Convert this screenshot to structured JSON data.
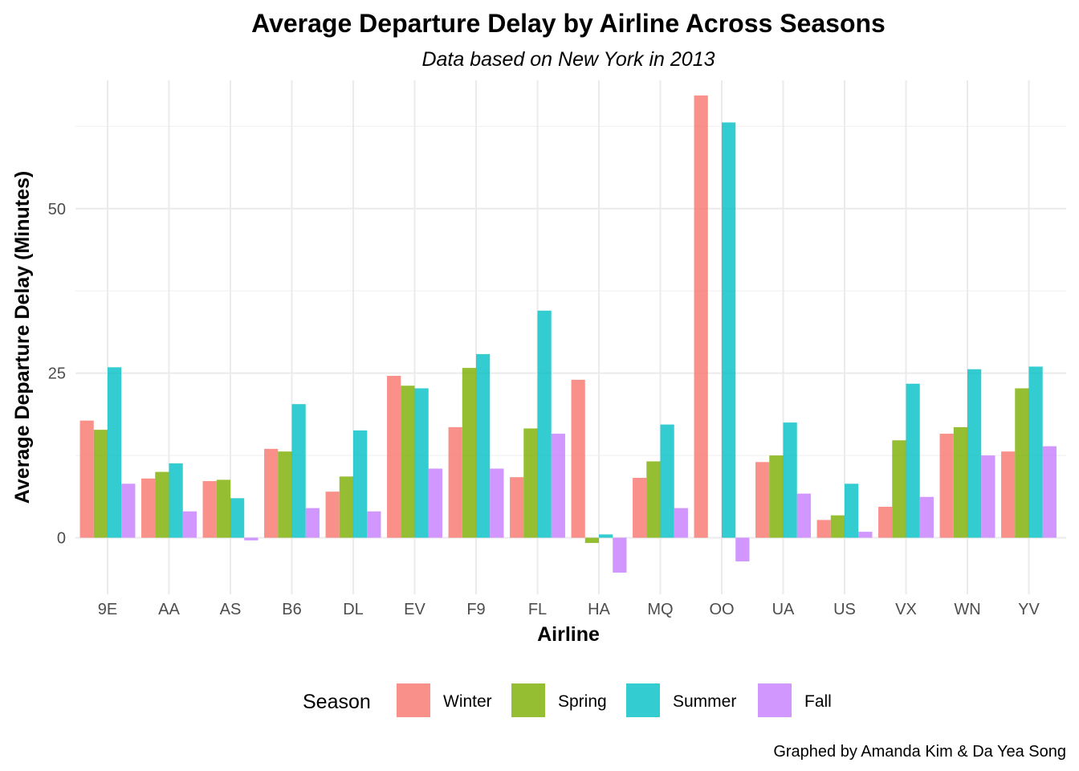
{
  "chart_data": {
    "type": "bar",
    "title": "Average Departure Delay by Airline Across Seasons",
    "subtitle": "Data based on New York in 2013",
    "xlabel": "Airline",
    "ylabel": "Average Departure Delay (Minutes)",
    "caption": "Graphed by Amanda Kim & Da Yea Song",
    "ylim": [
      -8.6,
      69.5
    ],
    "yticks": [
      0,
      25,
      50
    ],
    "ytick_labels": [
      "0",
      "25",
      "50"
    ],
    "grid": true,
    "legend": {
      "title": "Season",
      "position": "bottom"
    },
    "categories": [
      "9E",
      "AA",
      "AS",
      "B6",
      "DL",
      "EV",
      "F9",
      "FL",
      "HA",
      "MQ",
      "OO",
      "UA",
      "US",
      "VX",
      "WN",
      "YV"
    ],
    "series": [
      {
        "name": "Winter",
        "color": "#F8766D",
        "values": [
          17.8,
          9.0,
          8.6,
          13.5,
          7.0,
          24.6,
          16.8,
          9.2,
          24.0,
          9.1,
          67.2,
          11.5,
          2.7,
          4.7,
          15.8,
          13.1
        ]
      },
      {
        "name": "Spring",
        "color": "#7CAE00",
        "values": [
          16.4,
          10.0,
          8.8,
          13.1,
          9.3,
          23.1,
          25.8,
          16.6,
          -0.8,
          11.6,
          null,
          12.5,
          3.4,
          14.8,
          16.8,
          22.7
        ]
      },
      {
        "name": "Summer",
        "color": "#00BFC4",
        "values": [
          25.9,
          11.3,
          6.0,
          20.3,
          16.3,
          22.7,
          27.9,
          34.5,
          0.5,
          17.2,
          63.1,
          17.5,
          8.2,
          23.4,
          25.6,
          26.0
        ]
      },
      {
        "name": "Fall",
        "color": "#C77CFF",
        "values": [
          8.2,
          4.0,
          -0.4,
          4.5,
          4.0,
          10.5,
          10.5,
          15.8,
          -5.3,
          4.5,
          -3.6,
          6.7,
          0.9,
          6.2,
          12.5,
          13.9
        ]
      }
    ]
  }
}
